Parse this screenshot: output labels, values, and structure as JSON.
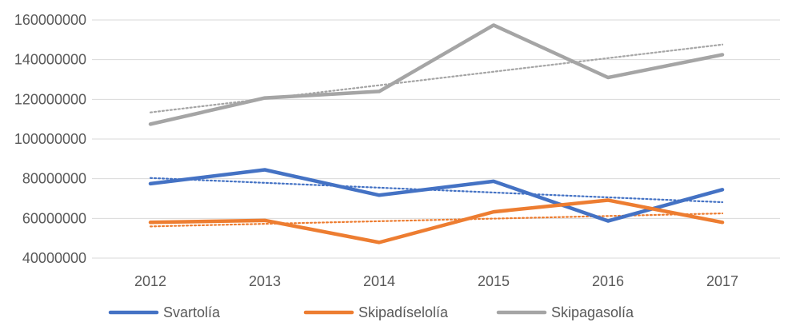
{
  "chart_data": {
    "type": "line",
    "title": "",
    "xlabel": "",
    "ylabel": "",
    "categories": [
      "2012",
      "2013",
      "2014",
      "2015",
      "2016",
      "2017"
    ],
    "y_ticks": [
      "40000000",
      "60000000",
      "80000000",
      "100000000",
      "120000000",
      "140000000",
      "160000000"
    ],
    "ylim": [
      40000000,
      160000000
    ],
    "grid": true,
    "legend_position": "bottom",
    "trendlines": true,
    "series": [
      {
        "name": "Svartolía",
        "color": "#4472c4",
        "values": [
          77500000,
          84500000,
          71700000,
          78700000,
          58700000,
          74500000
        ]
      },
      {
        "name": "Skipadíselolía",
        "color": "#ed7d31",
        "values": [
          58000000,
          59000000,
          47900000,
          63300000,
          69200000,
          58000000
        ]
      },
      {
        "name": "Skipagasolía",
        "color": "#a5a5a5",
        "values": [
          107500000,
          120700000,
          124000000,
          157400000,
          131000000,
          142500000
        ]
      }
    ]
  }
}
